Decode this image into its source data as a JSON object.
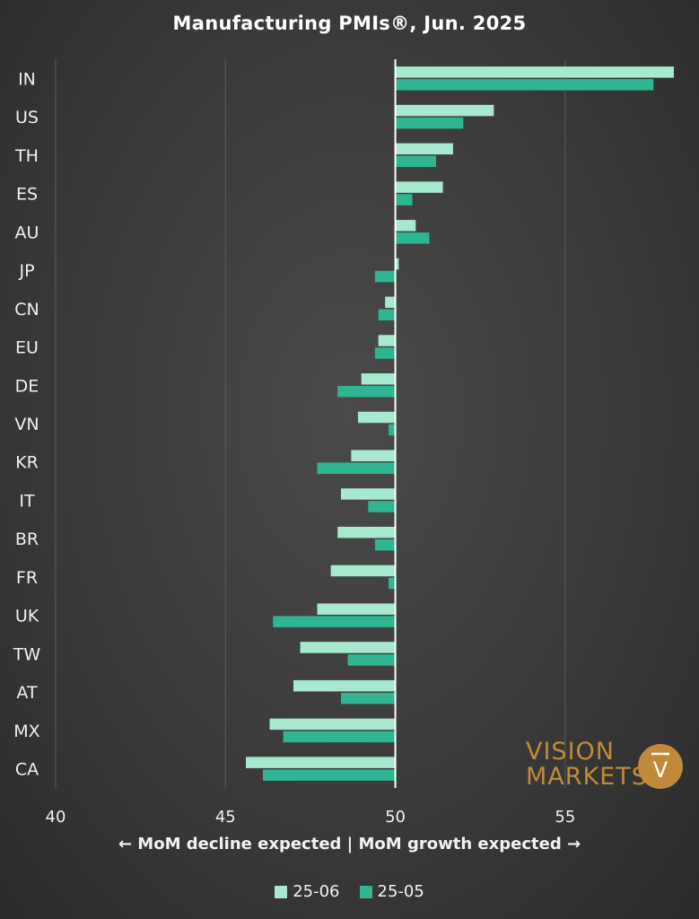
{
  "chart_data": {
    "type": "bar",
    "orientation": "horizontal",
    "title": "Manufacturing PMIs®, Jun. 2025",
    "xlabel": "← MoM decline expected | MoM growth expected →",
    "baseline": 50,
    "xlim": [
      40,
      58.2
    ],
    "xticks": [
      40,
      45,
      50,
      55
    ],
    "grid": true,
    "legend_position": "bottom",
    "categories": [
      "IN",
      "US",
      "TH",
      "ES",
      "AU",
      "JP",
      "CN",
      "EU",
      "DE",
      "VN",
      "KR",
      "IT",
      "BR",
      "FR",
      "UK",
      "TW",
      "AT",
      "MX",
      "CA"
    ],
    "series": [
      {
        "name": "25-06",
        "color": "#a6e9cf",
        "values": [
          58.2,
          52.9,
          51.7,
          51.4,
          50.6,
          50.1,
          49.7,
          49.5,
          49.0,
          48.9,
          48.7,
          48.4,
          48.3,
          48.1,
          47.7,
          47.2,
          47.0,
          46.3,
          45.6
        ]
      },
      {
        "name": "25-05",
        "color": "#2fb592",
        "values": [
          57.6,
          52.0,
          51.2,
          50.5,
          51.0,
          49.4,
          49.5,
          49.4,
          48.3,
          49.8,
          47.7,
          49.2,
          49.4,
          49.8,
          46.4,
          48.6,
          48.4,
          46.7,
          46.1
        ]
      }
    ]
  },
  "logo": {
    "line1": "VISION",
    "line2": "MARKETS",
    "mark": "V",
    "color": "#c08a3a"
  }
}
